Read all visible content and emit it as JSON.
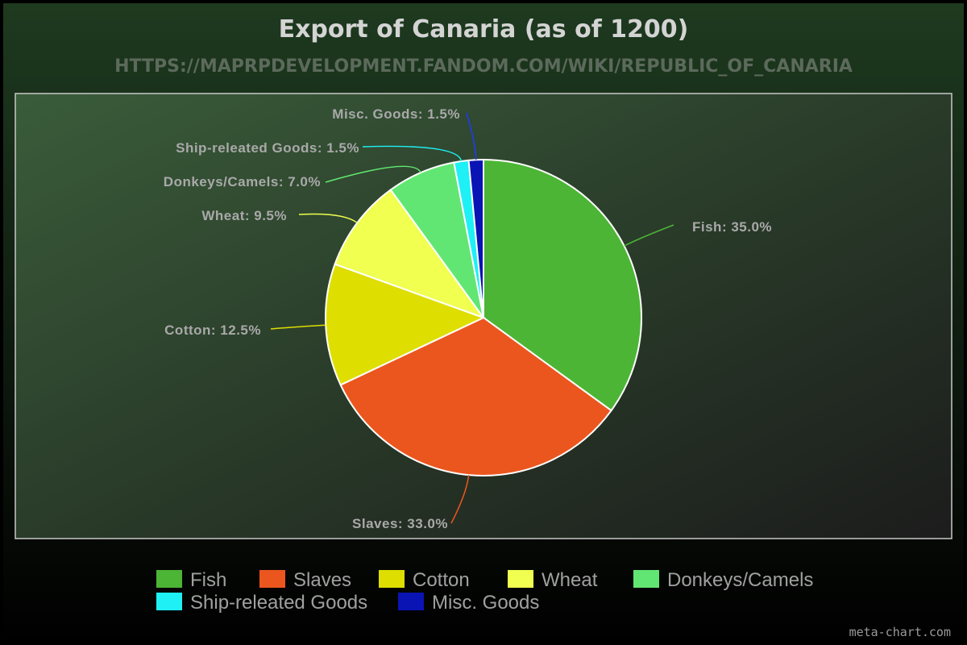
{
  "chart_data": {
    "type": "pie",
    "title": "Export of Canaria (as of 1200)",
    "subtitle": "HTTPS://MAPRPDEVELOPMENT.FANDOM.COM/WIKI/REPUBLIC_OF_CANARIA",
    "slices": [
      {
        "name": "Fish",
        "value": 35.0,
        "label": "Fish: 35.0%",
        "color": "#4cb535"
      },
      {
        "name": "Slaves",
        "value": 33.0,
        "label": "Slaves: 33.0%",
        "color": "#eb561e"
      },
      {
        "name": "Cotton",
        "value": 12.5,
        "label": "Cotton: 12.5%",
        "color": "#dede00"
      },
      {
        "name": "Wheat",
        "value": 9.5,
        "label": "Wheat: 9.5%",
        "color": "#f0ff50"
      },
      {
        "name": "Donkeys/Camels",
        "value": 7.0,
        "label": "Donkeys/Camels: 7.0%",
        "color": "#62e673"
      },
      {
        "name": "Ship-releated Goods",
        "value": 1.5,
        "label": "Ship-releated Goods: 1.5%",
        "color": "#1ef0f5"
      },
      {
        "name": "Misc. Goods",
        "value": 1.5,
        "label": "Misc. Goods: 1.5%",
        "color": "#0a14b4"
      }
    ],
    "legend_position": "bottom"
  },
  "credit": "meta-chart.com"
}
